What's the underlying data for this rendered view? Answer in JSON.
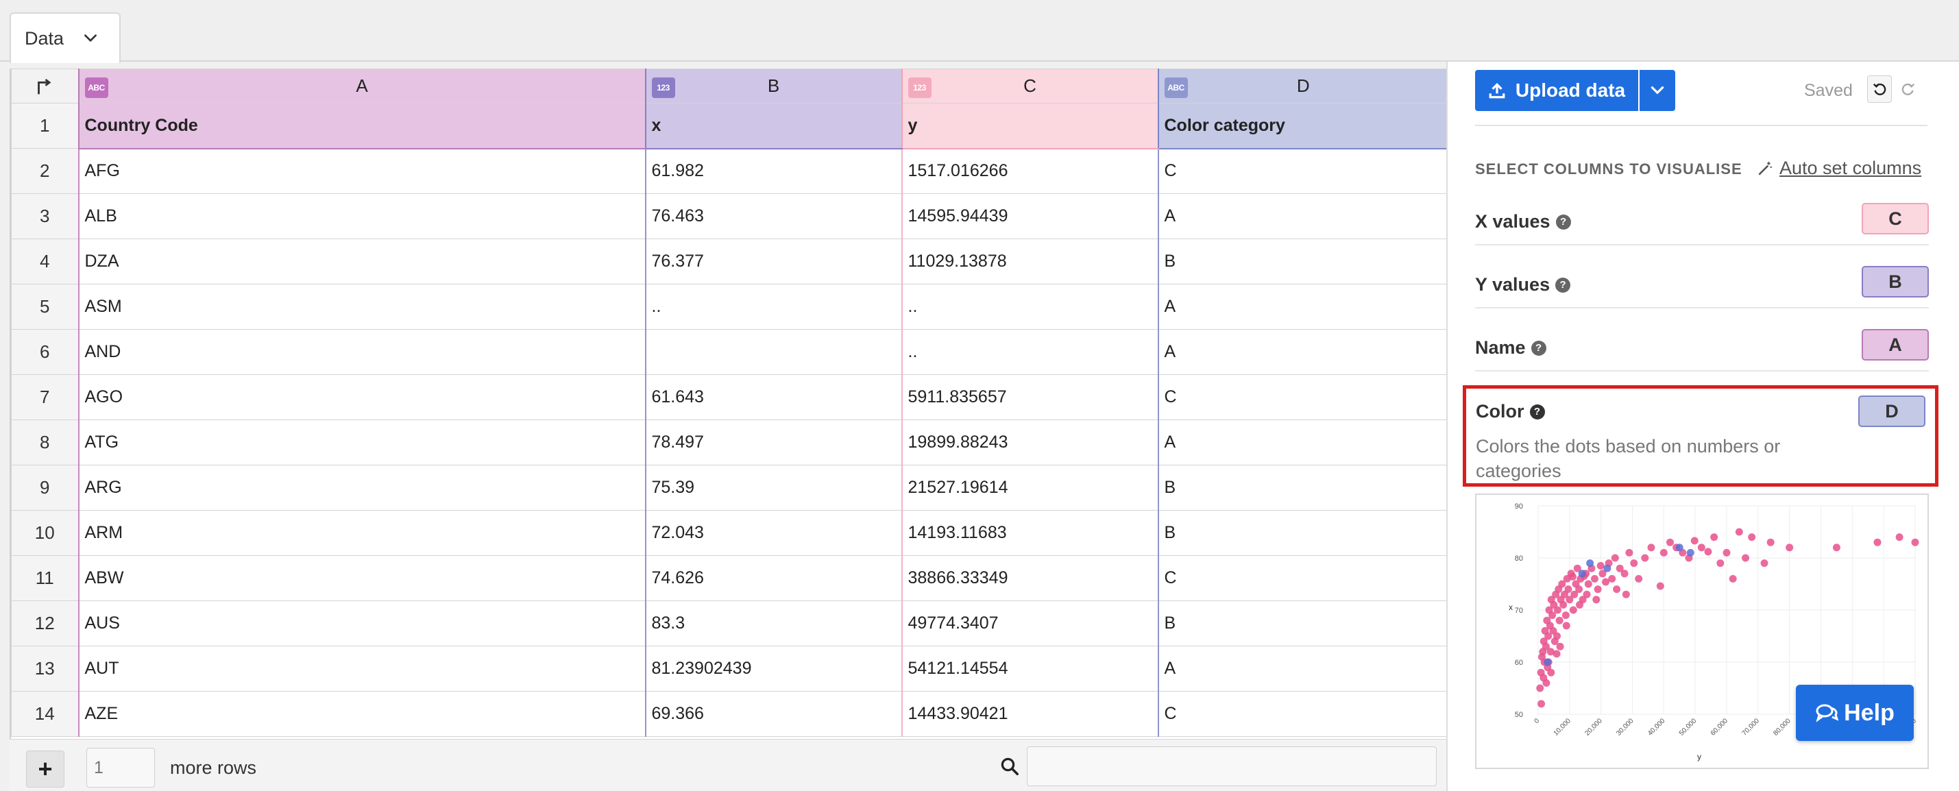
{
  "tab": {
    "label": "Data"
  },
  "grid": {
    "columns": [
      {
        "letter": "A",
        "type": "ABC",
        "header": "Country Code"
      },
      {
        "letter": "B",
        "type": "123",
        "header": "x"
      },
      {
        "letter": "C",
        "type": "123",
        "header": "y"
      },
      {
        "letter": "D",
        "type": "ABC",
        "header": "Color category"
      }
    ],
    "header_row_number": "1",
    "rows": [
      {
        "n": "2",
        "a": "AFG",
        "b": "61.982",
        "c": "1517.016266",
        "d": "C"
      },
      {
        "n": "3",
        "a": "ALB",
        "b": "76.463",
        "c": "14595.94439",
        "d": "A"
      },
      {
        "n": "4",
        "a": "DZA",
        "b": "76.377",
        "c": "11029.13878",
        "d": "B"
      },
      {
        "n": "5",
        "a": "ASM",
        "b": "..",
        "c": "..",
        "d": "A"
      },
      {
        "n": "6",
        "a": "AND",
        "b": "",
        "c": "..",
        "d": "A"
      },
      {
        "n": "7",
        "a": "AGO",
        "b": "61.643",
        "c": "5911.835657",
        "d": "C"
      },
      {
        "n": "8",
        "a": "ATG",
        "b": "78.497",
        "c": "19899.88243",
        "d": "A"
      },
      {
        "n": "9",
        "a": "ARG",
        "b": "75.39",
        "c": "21527.19614",
        "d": "B"
      },
      {
        "n": "10",
        "a": "ARM",
        "b": "72.043",
        "c": "14193.11683",
        "d": "B"
      },
      {
        "n": "11",
        "a": "ABW",
        "b": "74.626",
        "c": "38866.33349",
        "d": "C"
      },
      {
        "n": "12",
        "a": "AUS",
        "b": "83.3",
        "c": "49774.3407",
        "d": "B"
      },
      {
        "n": "13",
        "a": "AUT",
        "b": "81.23902439",
        "c": "54121.14554",
        "d": "A"
      },
      {
        "n": "14",
        "a": "AZE",
        "b": "69.366",
        "c": "14433.90421",
        "d": "C"
      }
    ]
  },
  "footer": {
    "add_rows_value": "1",
    "more_rows_label": "more rows",
    "search_value": ""
  },
  "panel": {
    "upload_label": "Upload data",
    "saved_label": "Saved",
    "section_title": "SELECT COLUMNS TO VISUALISE",
    "auto_set_label": "Auto set columns",
    "options": [
      {
        "label": "X values",
        "column": "C"
      },
      {
        "label": "Y values",
        "column": "B"
      },
      {
        "label": "Name",
        "column": "A"
      }
    ],
    "color": {
      "label": "Color",
      "column": "D",
      "description": "Colors the dots based on numbers or categories"
    }
  },
  "help_label": "Help",
  "colors": {
    "accent": "#1f6ee0",
    "colA": "#e6c3e3",
    "colB": "#cfc5e6",
    "colC": "#fbd7e0",
    "colD": "#c4c9e6",
    "highlight": "#d91e1e",
    "dot_pink": "#e8508c",
    "dot_blue": "#5a6fd6"
  },
  "chart_data": {
    "type": "scatter",
    "xlabel": "y",
    "ylabel": "x",
    "xlim": [
      0,
      120000
    ],
    "ylim": [
      50,
      90
    ],
    "x_ticks": [
      "0",
      "10,000",
      "20,000",
      "30,000",
      "40,000",
      "50,000",
      "60,000",
      "70,000",
      "80,000",
      "90,000",
      "100,000",
      "110,000",
      "120,000"
    ],
    "y_ticks": [
      "50",
      "60",
      "70",
      "80",
      "90"
    ],
    "grid": true,
    "series": [
      {
        "color": "#e8508c",
        "points": [
          [
            600,
            55
          ],
          [
            900,
            58
          ],
          [
            1200,
            61
          ],
          [
            1500,
            62
          ],
          [
            1800,
            64
          ],
          [
            2000,
            60
          ],
          [
            2200,
            66
          ],
          [
            2500,
            63
          ],
          [
            2800,
            68
          ],
          [
            3000,
            59
          ],
          [
            3200,
            65
          ],
          [
            3500,
            70
          ],
          [
            3800,
            67
          ],
          [
            4000,
            62
          ],
          [
            4200,
            72
          ],
          [
            4500,
            69
          ],
          [
            4800,
            66
          ],
          [
            5000,
            71
          ],
          [
            5300,
            64
          ],
          [
            5600,
            73
          ],
          [
            5900,
            61.6
          ],
          [
            6200,
            70
          ],
          [
            6500,
            74
          ],
          [
            6800,
            68
          ],
          [
            7200,
            72
          ],
          [
            7600,
            75
          ],
          [
            8000,
            71
          ],
          [
            8400,
            73
          ],
          [
            8800,
            69
          ],
          [
            9200,
            76
          ],
          [
            9600,
            74
          ],
          [
            10000,
            72
          ],
          [
            10500,
            77
          ],
          [
            11000,
            76.4
          ],
          [
            11500,
            73
          ],
          [
            12000,
            75
          ],
          [
            12500,
            78
          ],
          [
            13000,
            74
          ],
          [
            13500,
            76
          ],
          [
            14200,
            72
          ],
          [
            14600,
            76.5
          ],
          [
            15200,
            77
          ],
          [
            16000,
            75
          ],
          [
            17000,
            78
          ],
          [
            18000,
            76
          ],
          [
            19000,
            74
          ],
          [
            19900,
            78.5
          ],
          [
            20500,
            77
          ],
          [
            21500,
            75.4
          ],
          [
            22500,
            79
          ],
          [
            23500,
            76
          ],
          [
            24500,
            80
          ],
          [
            26000,
            78
          ],
          [
            27500,
            77
          ],
          [
            29000,
            81
          ],
          [
            30500,
            79
          ],
          [
            32000,
            76
          ],
          [
            34000,
            80
          ],
          [
            36000,
            82
          ],
          [
            38900,
            74.6
          ],
          [
            40000,
            81
          ],
          [
            42000,
            83
          ],
          [
            44000,
            82
          ],
          [
            46000,
            81
          ],
          [
            48000,
            80
          ],
          [
            49800,
            83.3
          ],
          [
            52000,
            82
          ],
          [
            54100,
            81.2
          ],
          [
            56000,
            84
          ],
          [
            58000,
            79
          ],
          [
            60000,
            81
          ],
          [
            62000,
            76
          ],
          [
            64000,
            85
          ],
          [
            66000,
            80
          ],
          [
            68000,
            84
          ],
          [
            72000,
            79
          ],
          [
            74000,
            83
          ],
          [
            80000,
            82
          ],
          [
            95000,
            82
          ],
          [
            108000,
            83
          ],
          [
            115000,
            84
          ],
          [
            120000,
            83
          ],
          [
            1000,
            52
          ],
          [
            1700,
            57
          ],
          [
            2600,
            56
          ],
          [
            3300,
            60
          ],
          [
            4100,
            58
          ],
          [
            6000,
            65
          ],
          [
            7000,
            63
          ],
          [
            9000,
            67
          ],
          [
            11200,
            70
          ],
          [
            13200,
            71
          ],
          [
            15500,
            73
          ],
          [
            18500,
            72
          ],
          [
            25000,
            74
          ],
          [
            28000,
            73
          ]
        ]
      },
      {
        "color": "#5a6fd6",
        "points": [
          [
            3000,
            60
          ],
          [
            14000,
            77
          ],
          [
            16500,
            79
          ],
          [
            22000,
            78
          ],
          [
            45000,
            82
          ],
          [
            48500,
            81
          ]
        ]
      }
    ]
  }
}
